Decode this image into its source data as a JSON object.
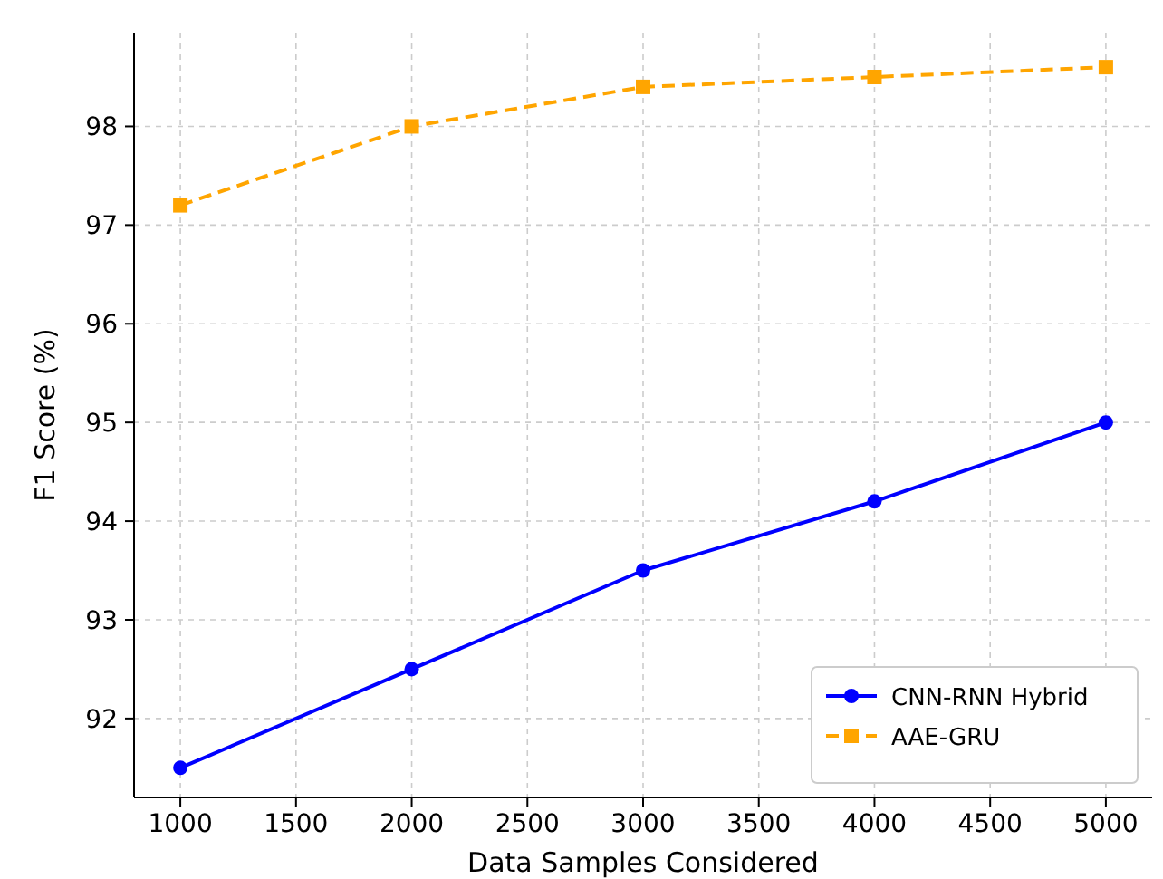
{
  "chart_data": {
    "type": "line",
    "xlabel": "Data Samples Considered",
    "ylabel": "F1 Score (%)",
    "x": [
      1000,
      2000,
      3000,
      4000,
      5000
    ],
    "series": [
      {
        "name": "CNN-RNN Hybrid",
        "color": "#0000ff",
        "values": [
          91.5,
          92.5,
          93.5,
          94.2,
          95.0
        ],
        "marker": "circle",
        "line_style": "solid"
      },
      {
        "name": "AAE-GRU",
        "color": "#ffa500",
        "values": [
          97.2,
          98.0,
          98.4,
          98.5,
          98.6
        ],
        "marker": "square",
        "line_style": "dashed"
      }
    ],
    "xlim": [
      800,
      5200
    ],
    "xticks": [
      1000,
      1500,
      2000,
      2500,
      3000,
      3500,
      4000,
      4500,
      5000
    ],
    "ylim": [
      91.2,
      98.95
    ],
    "yticks": [
      92,
      93,
      94,
      95,
      96,
      97,
      98
    ],
    "grid": true,
    "legend": "bottom right"
  }
}
